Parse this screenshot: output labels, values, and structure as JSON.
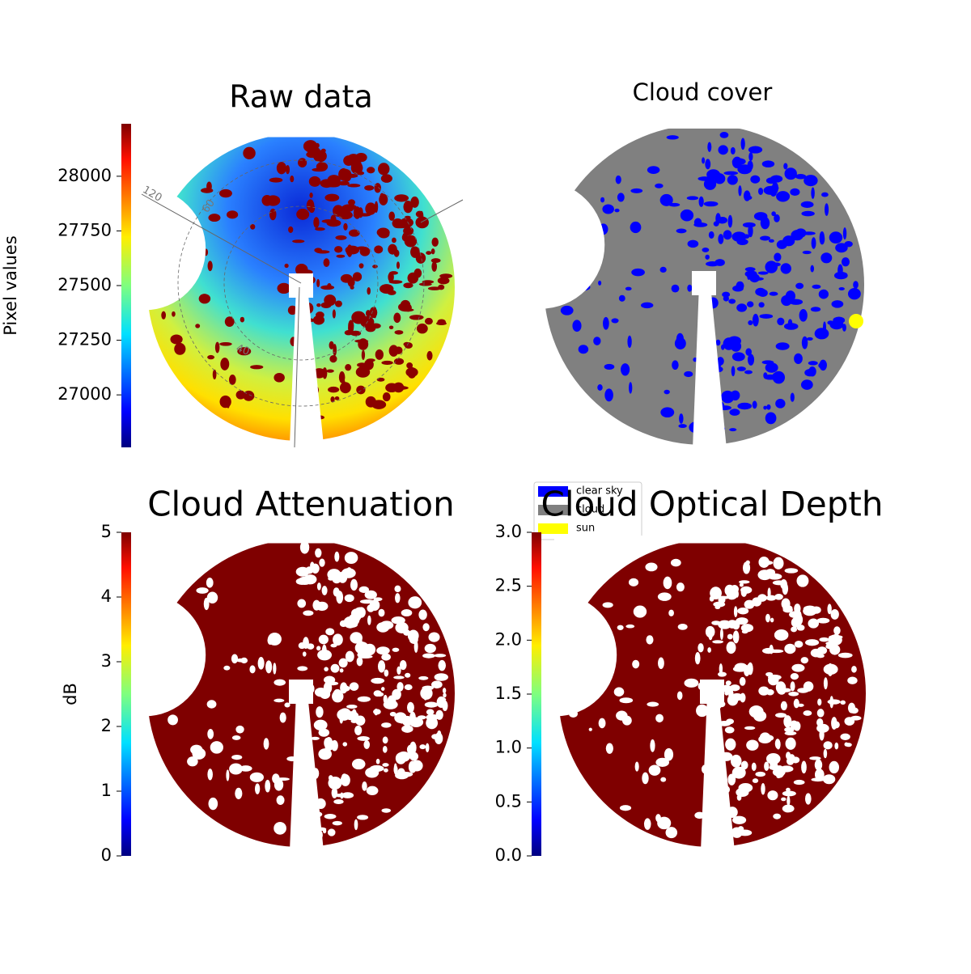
{
  "chart_data": [
    {
      "type": "image",
      "title": "Raw data",
      "colorbar": {
        "label": "Pixel values",
        "lim": [
          26760,
          28240
        ],
        "ticks": [
          27000,
          27250,
          27500,
          27750,
          28000
        ],
        "colormap": "jet"
      },
      "annotations": [
        "120",
        "60",
        "40"
      ]
    },
    {
      "type": "image",
      "title": "Cloud cover",
      "legend": [
        {
          "name": "clear sky",
          "color": "#0000ff"
        },
        {
          "name": "cloud",
          "color": "#808080"
        },
        {
          "name": "sun",
          "color": "#ffff00"
        }
      ]
    },
    {
      "type": "image",
      "title": "Cloud Attenuation",
      "colorbar": {
        "label": "dB",
        "lim": [
          0,
          5
        ],
        "ticks": [
          0,
          1,
          2,
          3,
          4,
          5
        ],
        "colormap": "jet"
      }
    },
    {
      "type": "image",
      "title": "Cloud Optical Depth",
      "colorbar": {
        "lim": [
          0,
          3
        ],
        "ticks": [
          {
            "value": 0,
            "label": "0.0"
          },
          0.5,
          {
            "value": 1,
            "label": "1.0"
          },
          1.5,
          {
            "value": 2,
            "label": "2.0"
          },
          2.5,
          {
            "value": 3,
            "label": "3.0"
          }
        ],
        "colormap": "jet"
      }
    }
  ]
}
